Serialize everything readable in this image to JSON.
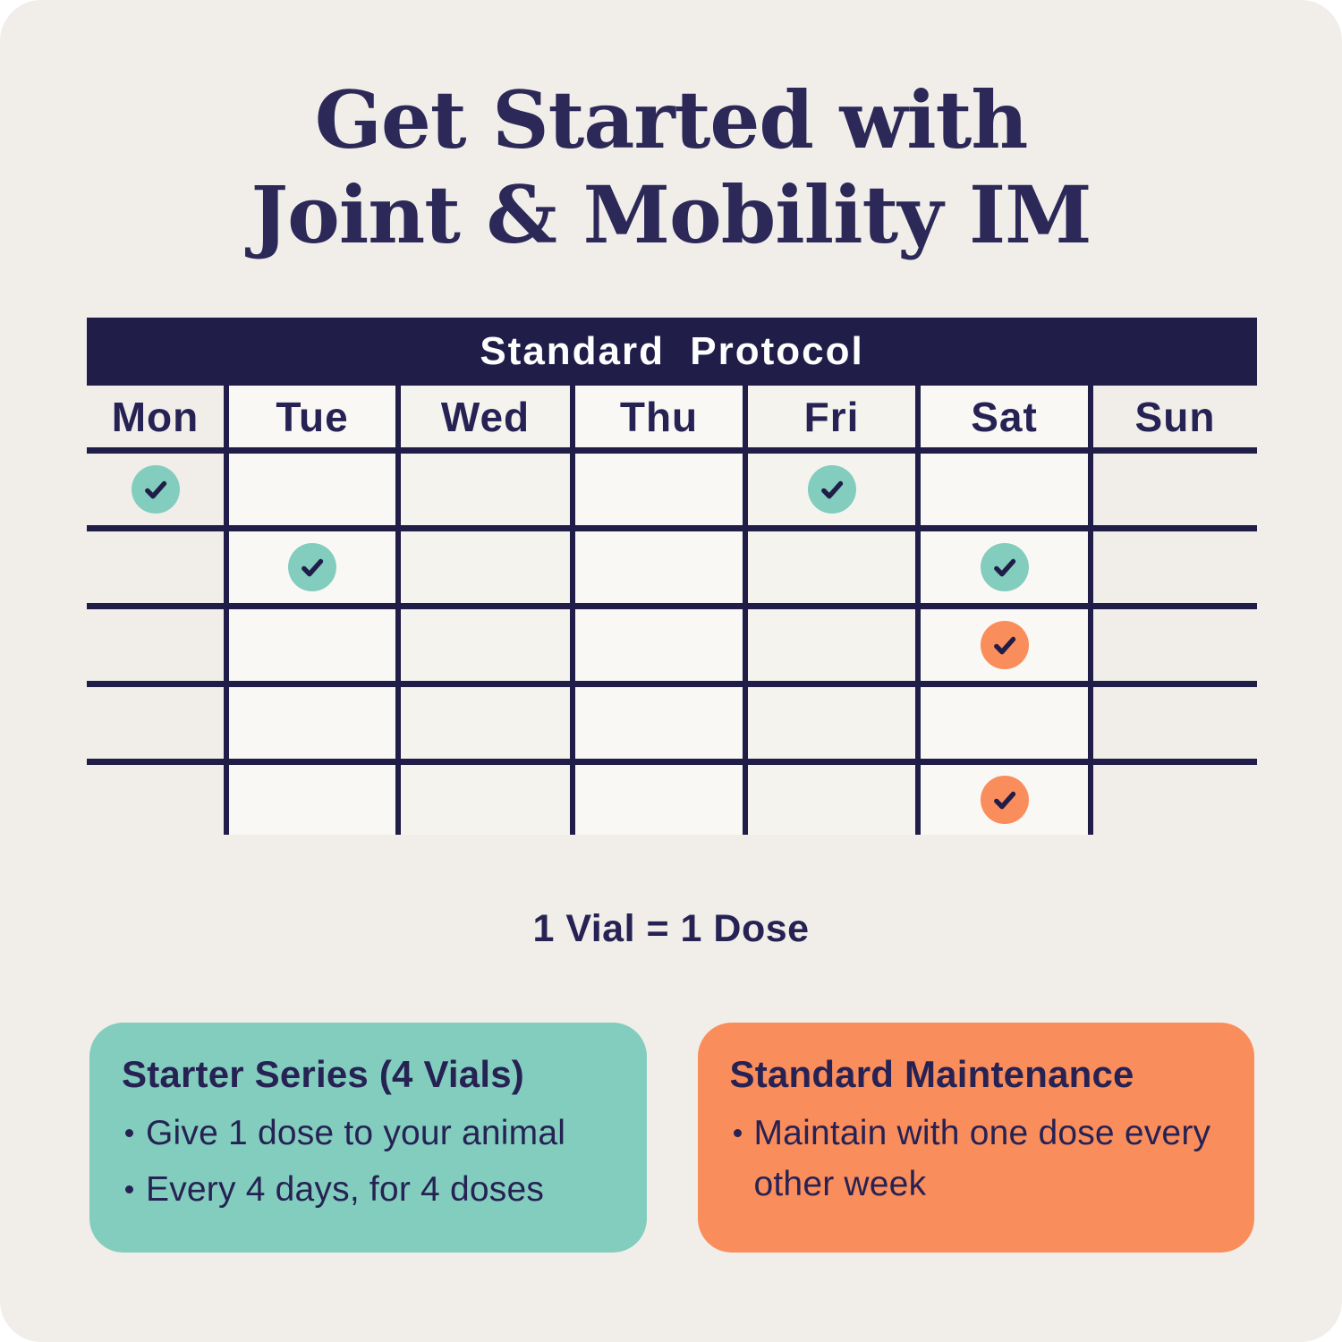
{
  "title": {
    "line1": "Get Started with",
    "line2": "Joint & Mobility IM"
  },
  "protocol": {
    "header": "Standard Protocol",
    "days": [
      "Mon",
      "Tue",
      "Wed",
      "Thu",
      "Fri",
      "Sat",
      "Sun"
    ],
    "row_checks": [
      [
        "teal",
        null,
        null,
        null,
        "teal",
        null,
        null
      ],
      [
        null,
        "teal",
        null,
        null,
        null,
        "teal",
        null
      ],
      [
        null,
        null,
        null,
        null,
        null,
        "orange",
        null
      ],
      [
        null,
        null,
        null,
        null,
        null,
        null,
        null
      ],
      [
        null,
        null,
        null,
        null,
        null,
        "orange",
        null
      ]
    ]
  },
  "note": "1 Vial = 1 Dose",
  "cards": {
    "starter": {
      "title": "Starter Series (4 Vials)",
      "bullets": [
        "Give 1 dose to your animal",
        "Every 4 days, for 4 doses"
      ]
    },
    "maintenance": {
      "title": "Standard Maintenance",
      "bullets": [
        "Maintain with one dose every other week"
      ]
    }
  },
  "colors": {
    "navy": "#201d49",
    "title_navy": "#2c2858",
    "text_navy": "#262253",
    "cream": "#f1eee9",
    "cell_light": "#f5f3ee",
    "cell_white": "#faf8f4",
    "teal": "#82cdbe",
    "orange": "#fa8d5c",
    "white": "#ffffff"
  }
}
